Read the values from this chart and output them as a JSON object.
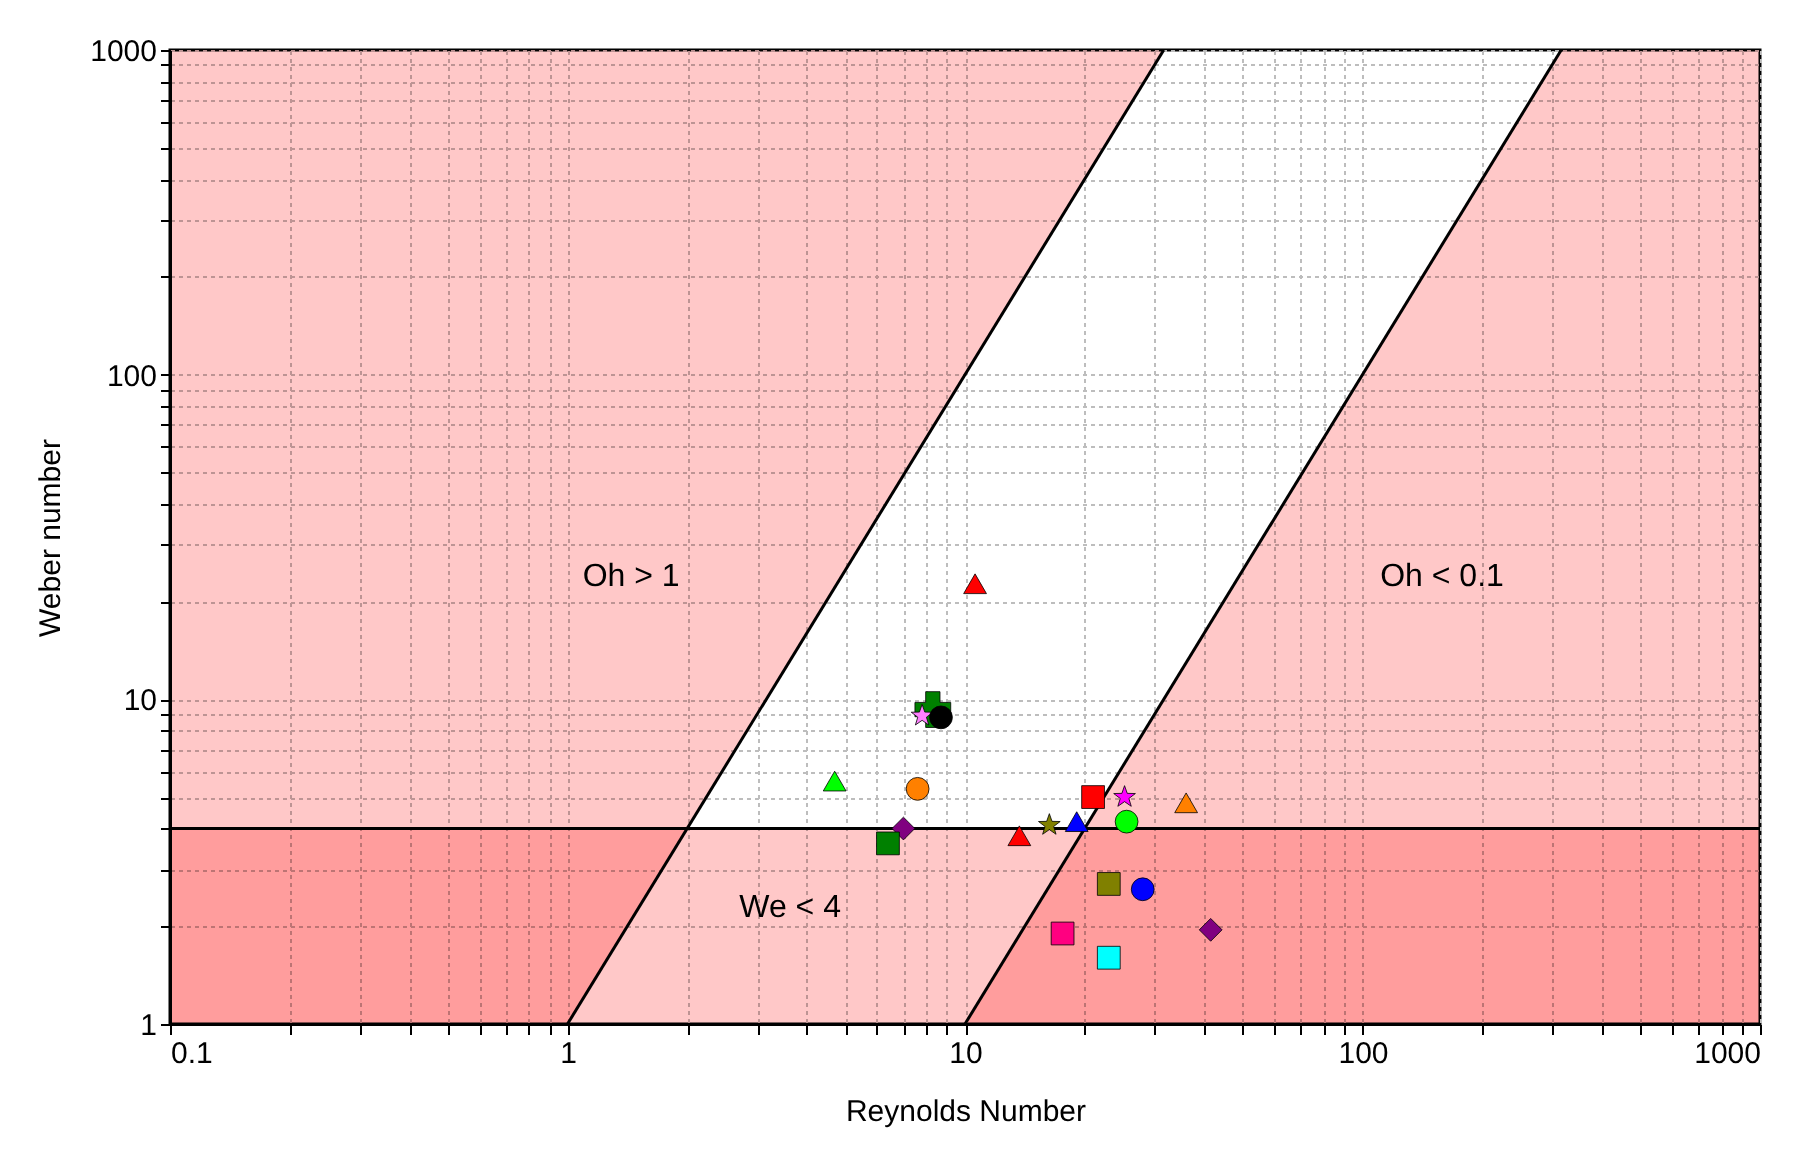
{
  "chart_data": {
    "type": "scatter",
    "xlabel": "Reynolds Number",
    "ylabel": "Weber number",
    "log": "xy",
    "grid": true,
    "xlim": [
      0.1,
      1000
    ],
    "ylim": [
      1,
      1000
    ],
    "xticks": [
      0.1,
      {
        "value": 0.2,
        "label": null
      },
      {
        "value": 0.3,
        "label": null
      },
      {
        "value": 0.4,
        "label": null
      },
      {
        "value": 0.5,
        "label": null
      },
      {
        "value": 0.6,
        "label": null
      },
      {
        "value": 0.7,
        "label": null
      },
      {
        "value": 0.8,
        "label": null
      },
      {
        "value": 0.9,
        "label": null
      },
      1,
      {
        "value": 2,
        "label": null
      },
      {
        "value": 3,
        "label": null
      },
      {
        "value": 4,
        "label": null
      },
      {
        "value": 5,
        "label": null
      },
      {
        "value": 6,
        "label": null
      },
      {
        "value": 7,
        "label": null
      },
      {
        "value": 8,
        "label": null
      },
      {
        "value": 9,
        "label": null
      },
      10,
      {
        "value": 20,
        "label": null
      },
      {
        "value": 30,
        "label": null
      },
      {
        "value": 40,
        "label": null
      },
      {
        "value": 50,
        "label": null
      },
      {
        "value": 60,
        "label": null
      },
      {
        "value": 70,
        "label": null
      },
      {
        "value": 80,
        "label": null
      },
      {
        "value": 90,
        "label": null
      },
      100,
      {
        "value": 200,
        "label": null
      },
      {
        "value": 300,
        "label": null
      },
      {
        "value": 400,
        "label": null
      },
      {
        "value": 500,
        "label": null
      },
      {
        "value": 600,
        "label": null
      },
      {
        "value": 700,
        "label": null
      },
      {
        "value": 800,
        "label": null
      },
      {
        "value": 900,
        "label": null
      },
      1000
    ],
    "yticks": [
      1,
      {
        "value": 2,
        "label": null
      },
      {
        "value": 3,
        "label": null
      },
      {
        "value": 4,
        "label": null
      },
      {
        "value": 5,
        "label": null
      },
      {
        "value": 6,
        "label": null
      },
      {
        "value": 7,
        "label": null
      },
      {
        "value": 8,
        "label": null
      },
      {
        "value": 9,
        "label": null
      },
      10,
      {
        "value": 20,
        "label": null
      },
      {
        "value": 30,
        "label": null
      },
      {
        "value": 40,
        "label": null
      },
      {
        "value": 50,
        "label": null
      },
      {
        "value": 60,
        "label": null
      },
      {
        "value": 70,
        "label": null
      },
      {
        "value": 80,
        "label": null
      },
      {
        "value": 90,
        "label": null
      },
      100,
      {
        "value": 200,
        "label": null
      },
      {
        "value": 300,
        "label": null
      },
      {
        "value": 400,
        "label": null
      },
      {
        "value": 500,
        "label": null
      },
      {
        "value": 600,
        "label": null
      },
      {
        "value": 700,
        "label": null
      },
      {
        "value": 800,
        "label": null
      },
      {
        "value": 900,
        "label": null
      },
      1000
    ],
    "bands": [
      {
        "axis": "y",
        "from": 1,
        "to": 4,
        "color": "#ffc8c8"
      }
    ],
    "ref_lines": [
      {
        "axis": "y",
        "value": 4,
        "color": "#000000"
      }
    ],
    "annotations": [
      "Oh > 1",
      "Oh < 0.1",
      "We < 4"
    ],
    "series": [
      {
        "type": "line",
        "x": [
          0.1,
          1,
          31.62
        ],
        "values": [
          null,
          1,
          1000
        ],
        "lower": [
          1,
          1,
          1000
        ],
        "upper": [
          1000,
          1000,
          1000
        ],
        "color": "#000000",
        "marker": "none"
      },
      {
        "type": "line",
        "x": [
          10,
          316.2,
          1000
        ],
        "values": [
          1,
          1000,
          null
        ],
        "lower": [
          1,
          1,
          1
        ],
        "upper": [
          1,
          1000,
          1000
        ],
        "color": "#000000",
        "marker": "none"
      },
      {
        "x": [
          10.6
        ],
        "values": [
          22.7
        ],
        "color": "#ff0000",
        "marker": "triangle"
      },
      {
        "x": [
          8.3
        ],
        "values": [
          9.3
        ],
        "color": "#008000",
        "marker": "cross"
      },
      {
        "x": [
          7.8
        ],
        "values": [
          8.9
        ],
        "color": "#ff80ff",
        "marker": "star"
      },
      {
        "x": [
          8.7
        ],
        "values": [
          8.8
        ],
        "color": "#000000",
        "marker": "circle"
      },
      {
        "x": [
          4.7
        ],
        "values": [
          5.6
        ],
        "color": "#00ff00",
        "marker": "triangle"
      },
      {
        "x": [
          7.6
        ],
        "values": [
          5.3
        ],
        "color": "#ff8000",
        "marker": "circle"
      },
      {
        "x": [
          7.0
        ],
        "values": [
          4.0
        ],
        "color": "#800080",
        "marker": "diamond"
      },
      {
        "x": [
          6.4
        ],
        "values": [
          3.6
        ],
        "color": "#008000",
        "marker": "square"
      },
      {
        "x": [
          13.7
        ],
        "values": [
          3.8
        ],
        "color": "#ff0000",
        "marker": "triangle"
      },
      {
        "x": [
          16.3
        ],
        "values": [
          4.1
        ],
        "color": "#808000",
        "marker": "star"
      },
      {
        "x": [
          19.1
        ],
        "values": [
          4.2
        ],
        "color": "#0000ff",
        "marker": "triangle"
      },
      {
        "x": [
          21
        ],
        "values": [
          5.0
        ],
        "color": "#ff0000",
        "marker": "square"
      },
      {
        "x": [
          25.2
        ],
        "values": [
          5.0
        ],
        "color": "#ff00ff",
        "marker": "star"
      },
      {
        "x": [
          25.5
        ],
        "values": [
          4.2
        ],
        "color": "#00ff00",
        "marker": "circle"
      },
      {
        "x": [
          36
        ],
        "values": [
          4.8
        ],
        "color": "#ff8000",
        "marker": "triangle"
      },
      {
        "x": [
          23
        ],
        "values": [
          2.7
        ],
        "color": "#808000",
        "marker": "square"
      },
      {
        "x": [
          28
        ],
        "values": [
          2.6
        ],
        "color": "#0000ff",
        "marker": "circle"
      },
      {
        "x": [
          17.6
        ],
        "values": [
          1.9
        ],
        "color": "#ff0080",
        "marker": "square"
      },
      {
        "x": [
          23
        ],
        "values": [
          1.6
        ],
        "color": "#00ffff",
        "marker": "square"
      },
      {
        "x": [
          41.5
        ],
        "values": [
          1.95
        ],
        "color": "#800080",
        "marker": "diamond"
      }
    ]
  }
}
